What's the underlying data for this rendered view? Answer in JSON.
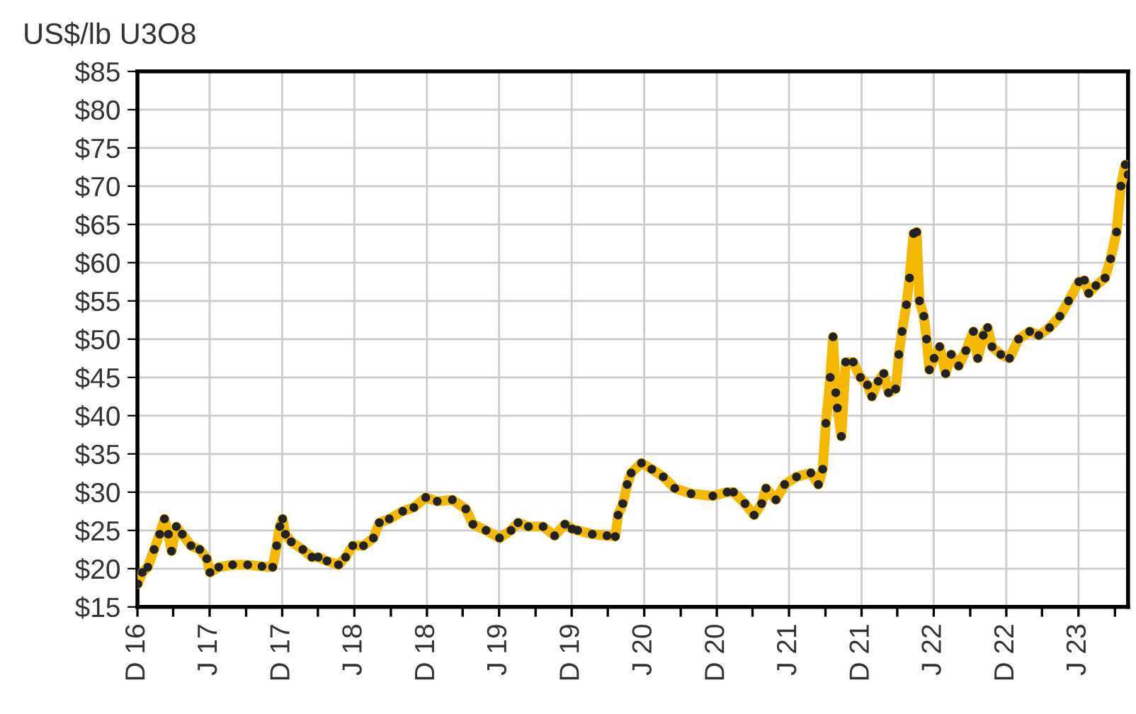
{
  "chart_data": {
    "type": "line",
    "ylabel": "US$/lb U3O8",
    "marker": "circle",
    "grid": true,
    "xlim": [
      "2016-12-01",
      "2023-10-04"
    ],
    "xticks": [
      {
        "value": "2016-12-01",
        "label": "D 16"
      },
      {
        "value": "2017-03-01",
        "label": null
      },
      {
        "value": "2017-06-01",
        "label": "J 17"
      },
      {
        "value": "2017-09-01",
        "label": null
      },
      {
        "value": "2017-12-01",
        "label": "D 17"
      },
      {
        "value": "2018-03-01",
        "label": null
      },
      {
        "value": "2018-06-01",
        "label": "J 18"
      },
      {
        "value": "2018-09-01",
        "label": null
      },
      {
        "value": "2018-12-01",
        "label": "D 18"
      },
      {
        "value": "2019-03-01",
        "label": null
      },
      {
        "value": "2019-06-01",
        "label": "J 19"
      },
      {
        "value": "2019-09-01",
        "label": null
      },
      {
        "value": "2019-12-01",
        "label": "D 19"
      },
      {
        "value": "2020-03-01",
        "label": null
      },
      {
        "value": "2020-06-01",
        "label": "J 20"
      },
      {
        "value": "2020-09-01",
        "label": null
      },
      {
        "value": "2020-12-01",
        "label": "D 20"
      },
      {
        "value": "2021-03-01",
        "label": null
      },
      {
        "value": "2021-06-01",
        "label": "J 21"
      },
      {
        "value": "2021-09-01",
        "label": null
      },
      {
        "value": "2021-12-01",
        "label": "D 21"
      },
      {
        "value": "2022-03-01",
        "label": null
      },
      {
        "value": "2022-06-01",
        "label": "J 22"
      },
      {
        "value": "2022-09-01",
        "label": null
      },
      {
        "value": "2022-12-01",
        "label": "D 22"
      },
      {
        "value": "2023-03-01",
        "label": null
      },
      {
        "value": "2023-06-01",
        "label": "J 23"
      },
      {
        "value": "2023-09-01",
        "label": null
      }
    ],
    "ylim": [
      15,
      85
    ],
    "yticks": [
      {
        "value": 15,
        "label": "$15"
      },
      {
        "value": 20,
        "label": "$20"
      },
      {
        "value": 25,
        "label": "$25"
      },
      {
        "value": 30,
        "label": "$30"
      },
      {
        "value": 35,
        "label": "$35"
      },
      {
        "value": 40,
        "label": "$40"
      },
      {
        "value": 45,
        "label": "$45"
      },
      {
        "value": 50,
        "label": "$50"
      },
      {
        "value": 55,
        "label": "$55"
      },
      {
        "value": 60,
        "label": "$60"
      },
      {
        "value": 65,
        "label": "$65"
      },
      {
        "value": 70,
        "label": "$70"
      },
      {
        "value": 75,
        "label": "$75"
      },
      {
        "value": 80,
        "label": "$80"
      },
      {
        "value": 85,
        "label": "$85"
      }
    ],
    "series": [
      {
        "color": "#f5b800",
        "x": [
          "2016-12-02",
          "2016-12-13",
          "2016-12-27",
          "2017-01-12",
          "2017-01-26",
          "2017-02-07",
          "2017-02-17",
          "2017-02-25",
          "2017-03-09",
          "2017-03-24",
          "2017-04-15",
          "2017-05-07",
          "2017-05-25",
          "2017-06-02",
          "2017-06-24",
          "2017-07-29",
          "2017-09-05",
          "2017-10-11",
          "2017-11-07",
          "2017-11-17",
          "2017-11-25",
          "2017-12-02",
          "2017-12-09",
          "2017-12-24",
          "2018-01-22",
          "2018-02-14",
          "2018-03-02",
          "2018-03-24",
          "2018-04-22",
          "2018-05-10",
          "2018-05-28",
          "2018-06-24",
          "2018-07-19",
          "2018-08-03",
          "2018-08-28",
          "2018-10-01",
          "2018-10-29",
          "2018-11-28",
          "2018-12-27",
          "2019-02-03",
          "2019-03-09",
          "2019-03-27",
          "2019-04-29",
          "2019-06-02",
          "2019-07-01",
          "2019-07-19",
          "2019-08-14",
          "2019-09-20",
          "2019-10-19",
          "2019-11-14",
          "2019-12-02",
          "2019-12-16",
          "2020-01-22",
          "2020-02-28",
          "2020-03-20",
          "2020-03-27",
          "2020-04-08",
          "2020-04-19",
          "2020-04-29",
          "2020-05-25",
          "2020-06-20",
          "2020-07-19",
          "2020-08-17",
          "2020-09-27",
          "2020-11-21",
          "2020-12-27",
          "2021-01-12",
          "2021-02-10",
          "2021-03-05",
          "2021-03-24",
          "2021-04-04",
          "2021-04-29",
          "2021-05-21",
          "2021-06-20",
          "2021-07-26",
          "2021-08-14",
          "2021-08-25",
          "2021-09-02",
          "2021-09-13",
          "2021-09-20",
          "2021-09-27",
          "2021-10-01",
          "2021-10-11",
          "2021-10-22",
          "2021-11-10",
          "2021-11-28",
          "2021-12-16",
          "2021-12-27",
          "2022-01-12",
          "2022-01-26",
          "2022-02-07",
          "2022-02-25",
          "2022-03-05",
          "2022-03-13",
          "2022-03-24",
          "2022-04-01",
          "2022-04-11",
          "2022-04-19",
          "2022-04-26",
          "2022-05-07",
          "2022-05-14",
          "2022-05-21",
          "2022-06-02",
          "2022-06-16",
          "2022-07-01",
          "2022-07-15",
          "2022-08-03",
          "2022-08-21",
          "2022-09-09",
          "2022-09-20",
          "2022-10-04",
          "2022-10-15",
          "2022-10-26",
          "2022-11-17",
          "2022-12-09",
          "2023-01-01",
          "2023-01-29",
          "2023-02-21",
          "2023-03-20",
          "2023-04-15",
          "2023-05-07",
          "2023-06-02",
          "2023-06-16",
          "2023-06-27",
          "2023-07-15",
          "2023-08-07",
          "2023-08-21",
          "2023-09-05",
          "2023-09-16",
          "2023-09-27",
          "2023-10-04"
        ],
        "values": [
          18,
          19.5,
          20.2,
          22.5,
          24.5,
          26.5,
          24.5,
          22.3,
          25.5,
          24.5,
          23,
          22.5,
          21.3,
          19.5,
          20.2,
          20.5,
          20.5,
          20.3,
          20.2,
          23,
          25.5,
          26.5,
          24.5,
          23.5,
          22.5,
          21.5,
          21.5,
          21,
          20.5,
          21.5,
          23,
          23,
          24,
          26,
          26.5,
          27.5,
          28,
          29.3,
          28.8,
          29,
          27.8,
          25.8,
          25,
          24,
          25,
          26,
          25.5,
          25.5,
          24.3,
          25.8,
          25.2,
          25,
          24.5,
          24.3,
          24.2,
          27,
          28.5,
          31,
          32.5,
          33.8,
          33,
          32,
          30.5,
          29.8,
          29.5,
          30,
          30,
          28.5,
          27,
          28.5,
          30.5,
          29,
          31,
          32,
          32.5,
          31,
          33,
          39,
          45,
          50.3,
          43,
          41,
          37.3,
          47,
          47,
          45,
          44,
          42.5,
          44.5,
          45.5,
          43,
          43.5,
          48,
          51,
          54.5,
          58,
          63.8,
          64,
          55,
          53,
          50,
          46,
          47.5,
          49,
          45.5,
          48,
          46.5,
          48.5,
          51,
          47.5,
          50.5,
          51.5,
          49,
          48,
          47.5,
          50,
          51,
          50.5,
          51.5,
          53,
          55,
          57.5,
          57.7,
          56,
          57,
          58,
          60.5,
          64,
          70,
          72.8,
          71.5
        ]
      }
    ]
  }
}
